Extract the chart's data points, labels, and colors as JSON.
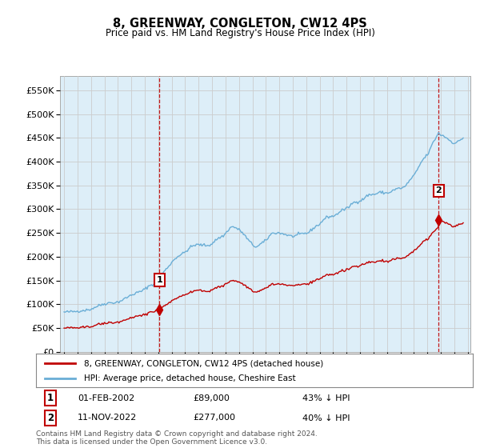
{
  "title": "8, GREENWAY, CONGLETON, CW12 4PS",
  "subtitle": "Price paid vs. HM Land Registry's House Price Index (HPI)",
  "legend_line1": "8, GREENWAY, CONGLETON, CW12 4PS (detached house)",
  "legend_line2": "HPI: Average price, detached house, Cheshire East",
  "footnote1": "Contains HM Land Registry data © Crown copyright and database right 2024.",
  "footnote2": "This data is licensed under the Open Government Licence v3.0.",
  "annotation1_date": "01-FEB-2002",
  "annotation1_price": "£89,000",
  "annotation1_hpi": "43% ↓ HPI",
  "annotation2_date": "11-NOV-2022",
  "annotation2_price": "£277,000",
  "annotation2_hpi": "40% ↓ HPI",
  "hpi_color": "#6aaed6",
  "hpi_fill": "#ddeef8",
  "price_color": "#c00000",
  "annotation_color": "#c00000",
  "bg_color": "#ffffff",
  "grid_color": "#cccccc",
  "ylim": [
    0,
    580000
  ],
  "yticks": [
    0,
    50000,
    100000,
    150000,
    200000,
    250000,
    300000,
    350000,
    400000,
    450000,
    500000,
    550000
  ],
  "sale1_year": 2002,
  "sale1_month": 2,
  "sale1_price": 89000,
  "sale2_year": 2022,
  "sale2_month": 11,
  "sale2_price": 277000,
  "hpi_ratio1": 0.57,
  "hpi_ratio2": 0.6
}
